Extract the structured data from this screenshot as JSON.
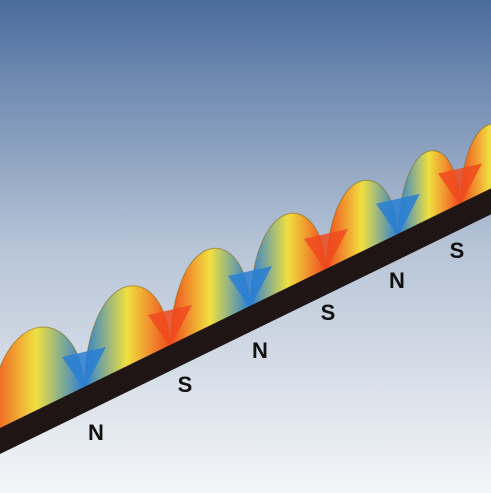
{
  "diagram": {
    "poles": [
      {
        "label": "N"
      },
      {
        "label": "S"
      },
      {
        "label": "N"
      },
      {
        "label": "S"
      },
      {
        "label": "N"
      },
      {
        "label": "S"
      }
    ],
    "colors": {
      "background_top": "#4b6d9e",
      "background_bottom": "#f4f6f8",
      "strip": "#1f1514",
      "field_north": "#2a7fd4",
      "field_mid": "#f0e040",
      "field_south": "#f04a1e",
      "pole_label": "#111111"
    }
  }
}
